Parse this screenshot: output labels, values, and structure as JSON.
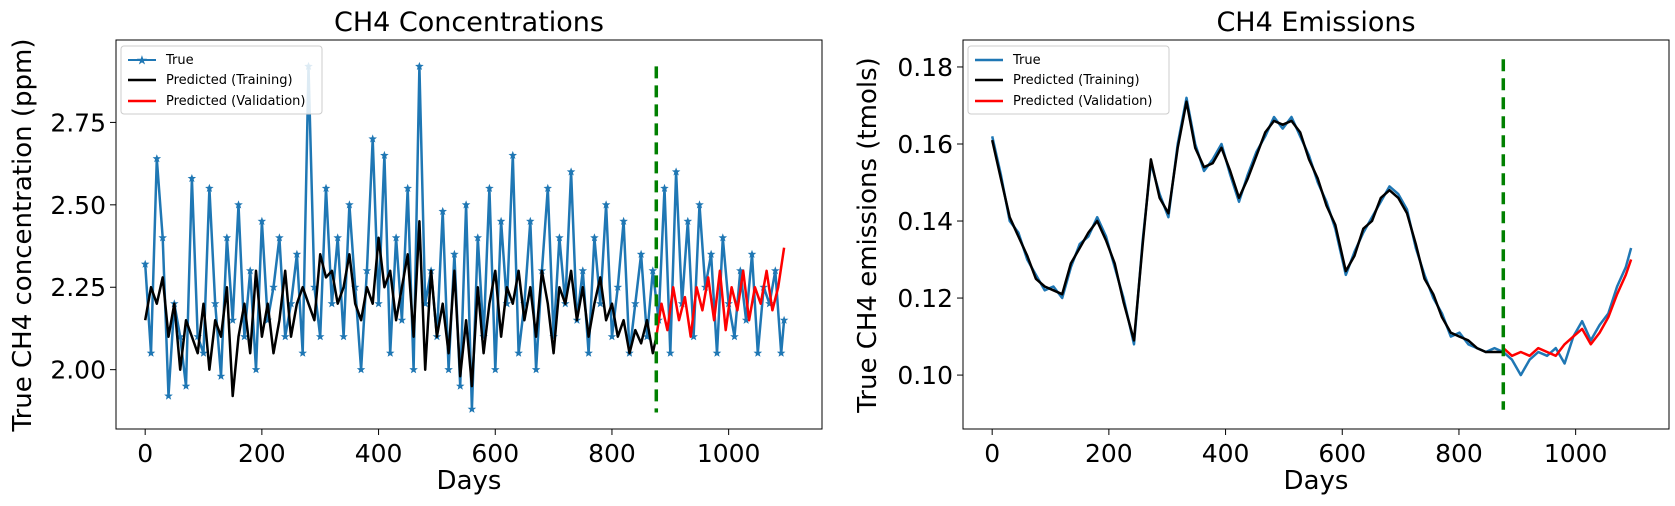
{
  "chart_data": [
    {
      "type": "line",
      "title": "CH4 Concentrations",
      "xlabel": "Days",
      "ylabel": "True CH4 concentration (ppm)",
      "xlim": [
        -50,
        1160
      ],
      "ylim": [
        1.82,
        3.0
      ],
      "xticks": [
        0,
        200,
        400,
        600,
        800,
        1000
      ],
      "yticks": [
        2.0,
        2.25,
        2.5,
        2.75
      ],
      "xtick_labels": [
        "0",
        "200",
        "400",
        "600",
        "800",
        "1000"
      ],
      "ytick_labels": [
        "2.00",
        "2.25",
        "2.50",
        "2.75"
      ],
      "split_day": 876,
      "split_range": [
        1.87,
        2.92
      ],
      "legend": [
        "True",
        "Predicted (Training)",
        "Predicted (Validation)"
      ],
      "legend_position": "top-left",
      "series": [
        {
          "name": "True",
          "color": "#1f77b4",
          "marker": "star",
          "x": [
            0,
            10,
            20,
            30,
            40,
            50,
            60,
            70,
            80,
            90,
            100,
            110,
            120,
            130,
            140,
            150,
            160,
            170,
            180,
            190,
            200,
            210,
            220,
            230,
            240,
            250,
            260,
            270,
            280,
            290,
            300,
            310,
            320,
            330,
            340,
            350,
            360,
            370,
            380,
            390,
            400,
            410,
            420,
            430,
            440,
            450,
            460,
            470,
            480,
            490,
            500,
            510,
            520,
            530,
            540,
            550,
            560,
            570,
            580,
            590,
            600,
            610,
            620,
            630,
            640,
            650,
            660,
            670,
            680,
            690,
            700,
            710,
            720,
            730,
            740,
            750,
            760,
            770,
            780,
            790,
            800,
            810,
            820,
            830,
            840,
            850,
            860,
            870,
            880,
            890,
            900,
            910,
            920,
            930,
            940,
            950,
            960,
            970,
            980,
            990,
            1000,
            1010,
            1020,
            1030,
            1040,
            1050,
            1060,
            1070,
            1080,
            1090,
            1095
          ],
          "y": [
            2.32,
            2.05,
            2.64,
            2.4,
            1.92,
            2.2,
            2.1,
            1.95,
            2.58,
            2.1,
            2.05,
            2.55,
            2.2,
            1.98,
            2.4,
            2.15,
            2.5,
            2.1,
            2.3,
            2.0,
            2.45,
            2.15,
            2.25,
            2.4,
            2.1,
            2.2,
            2.35,
            2.05,
            2.92,
            2.25,
            2.1,
            2.55,
            2.2,
            2.4,
            2.1,
            2.5,
            2.25,
            2.0,
            2.3,
            2.7,
            2.2,
            2.65,
            2.05,
            2.4,
            2.15,
            2.55,
            2.0,
            2.92,
            2.2,
            2.3,
            2.1,
            2.48,
            2.0,
            2.35,
            1.95,
            2.5,
            1.88,
            2.4,
            2.1,
            2.55,
            2.0,
            2.45,
            2.2,
            2.65,
            2.05,
            2.2,
            2.45,
            2.0,
            2.3,
            2.55,
            2.1,
            2.4,
            2.2,
            2.6,
            2.15,
            2.3,
            2.05,
            2.4,
            2.2,
            2.5,
            2.1,
            2.25,
            2.45,
            2.05,
            2.2,
            2.35,
            2.1,
            2.3,
            2.15,
            2.55,
            2.05,
            2.6,
            2.2,
            2.45,
            2.1,
            2.5,
            2.25,
            2.35,
            2.05,
            2.4,
            2.2,
            2.1,
            2.3,
            2.15,
            2.35,
            2.05,
            2.25,
            2.2,
            2.3,
            2.05,
            2.15
          ]
        },
        {
          "name": "Predicted (Training)",
          "color": "#000000",
          "x": [
            0,
            10,
            20,
            30,
            40,
            50,
            60,
            70,
            80,
            90,
            100,
            110,
            120,
            130,
            140,
            150,
            160,
            170,
            180,
            190,
            200,
            210,
            220,
            230,
            240,
            250,
            260,
            270,
            280,
            290,
            300,
            310,
            320,
            330,
            340,
            350,
            360,
            370,
            380,
            390,
            400,
            410,
            420,
            430,
            440,
            450,
            460,
            470,
            480,
            490,
            500,
            510,
            520,
            530,
            540,
            550,
            560,
            570,
            580,
            590,
            600,
            610,
            620,
            630,
            640,
            650,
            660,
            670,
            680,
            690,
            700,
            710,
            720,
            730,
            740,
            750,
            760,
            770,
            780,
            790,
            800,
            810,
            820,
            830,
            840,
            850,
            860,
            870,
            876
          ],
          "y": [
            2.15,
            2.25,
            2.2,
            2.28,
            2.1,
            2.2,
            2.0,
            2.15,
            2.1,
            2.05,
            2.2,
            2.0,
            2.15,
            2.1,
            2.25,
            1.92,
            2.1,
            2.2,
            2.05,
            2.3,
            2.1,
            2.2,
            2.05,
            2.15,
            2.3,
            2.1,
            2.2,
            2.25,
            2.2,
            2.15,
            2.35,
            2.28,
            2.3,
            2.2,
            2.25,
            2.35,
            2.2,
            2.15,
            2.25,
            2.2,
            2.4,
            2.25,
            2.3,
            2.15,
            2.25,
            2.35,
            2.1,
            2.45,
            2.0,
            2.3,
            2.1,
            2.2,
            2.05,
            2.3,
            1.98,
            2.15,
            1.95,
            2.25,
            2.05,
            2.2,
            2.3,
            2.1,
            2.25,
            2.2,
            2.3,
            2.15,
            2.25,
            2.1,
            2.3,
            2.2,
            2.05,
            2.25,
            2.2,
            2.3,
            2.15,
            2.25,
            2.1,
            2.2,
            2.28,
            2.15,
            2.2,
            2.1,
            2.15,
            2.05,
            2.12,
            2.08,
            2.15,
            2.05,
            2.1
          ]
        },
        {
          "name": "Predicted (Validation)",
          "color": "#ff0000",
          "x": [
            876,
            885,
            895,
            905,
            915,
            925,
            935,
            945,
            955,
            965,
            975,
            985,
            995,
            1005,
            1015,
            1025,
            1035,
            1045,
            1055,
            1065,
            1075,
            1085,
            1095
          ],
          "y": [
            2.1,
            2.2,
            2.12,
            2.25,
            2.15,
            2.22,
            2.1,
            2.25,
            2.18,
            2.28,
            2.15,
            2.3,
            2.12,
            2.25,
            2.18,
            2.3,
            2.15,
            2.25,
            2.2,
            2.3,
            2.18,
            2.25,
            2.37
          ]
        }
      ]
    },
    {
      "type": "line",
      "title": "CH4 Emissions",
      "xlabel": "Days",
      "ylabel": "True CH4 emissions (tmols)",
      "xlim": [
        -50,
        1160
      ],
      "ylim": [
        0.086,
        0.187
      ],
      "xticks": [
        0,
        200,
        400,
        600,
        800,
        1000
      ],
      "yticks": [
        0.1,
        0.12,
        0.14,
        0.16,
        0.18
      ],
      "xtick_labels": [
        "0",
        "200",
        "400",
        "600",
        "800",
        "1000"
      ],
      "ytick_labels": [
        "0.10",
        "0.12",
        "0.14",
        "0.16",
        "0.18"
      ],
      "split_day": 876,
      "split_range": [
        0.091,
        0.182
      ],
      "legend": [
        "True",
        "Predicted (Training)",
        "Predicted (Validation)"
      ],
      "legend_position": "top-left",
      "series": [
        {
          "name": "True",
          "color": "#1f77b4",
          "x": [
            0,
            15,
            30,
            45,
            60,
            75,
            90,
            105,
            120,
            135,
            150,
            165,
            180,
            195,
            210,
            225,
            243,
            258,
            272,
            287,
            302,
            318,
            333,
            348,
            363,
            378,
            393,
            408,
            423,
            438,
            453,
            468,
            483,
            498,
            513,
            528,
            543,
            558,
            573,
            588,
            606,
            621,
            636,
            651,
            666,
            681,
            696,
            711,
            726,
            741,
            756,
            771,
            786,
            801,
            816,
            831,
            846,
            861,
            876,
            891,
            906,
            921,
            936,
            951,
            966,
            981,
            996,
            1011,
            1026,
            1041,
            1056,
            1071,
            1086,
            1095
          ],
          "y": [
            0.162,
            0.152,
            0.14,
            0.137,
            0.13,
            0.126,
            0.122,
            0.123,
            0.12,
            0.128,
            0.134,
            0.136,
            0.141,
            0.136,
            0.128,
            0.12,
            0.108,
            0.135,
            0.155,
            0.147,
            0.141,
            0.16,
            0.172,
            0.16,
            0.153,
            0.156,
            0.16,
            0.152,
            0.145,
            0.152,
            0.158,
            0.162,
            0.167,
            0.164,
            0.167,
            0.162,
            0.157,
            0.15,
            0.145,
            0.138,
            0.126,
            0.132,
            0.137,
            0.141,
            0.145,
            0.149,
            0.147,
            0.143,
            0.133,
            0.126,
            0.12,
            0.116,
            0.11,
            0.111,
            0.108,
            0.107,
            0.106,
            0.107,
            0.106,
            0.104,
            0.1,
            0.104,
            0.106,
            0.105,
            0.107,
            0.103,
            0.11,
            0.114,
            0.109,
            0.113,
            0.116,
            0.123,
            0.128,
            0.133
          ]
        },
        {
          "name": "Predicted (Training)",
          "color": "#000000",
          "x": [
            0,
            15,
            30,
            45,
            60,
            75,
            90,
            105,
            120,
            135,
            150,
            165,
            180,
            195,
            210,
            225,
            243,
            258,
            272,
            287,
            302,
            318,
            333,
            348,
            363,
            378,
            393,
            408,
            423,
            438,
            453,
            468,
            483,
            498,
            513,
            528,
            543,
            558,
            573,
            588,
            606,
            621,
            636,
            651,
            666,
            681,
            696,
            711,
            726,
            741,
            756,
            771,
            786,
            801,
            816,
            831,
            846,
            861,
            876
          ],
          "y": [
            0.161,
            0.151,
            0.141,
            0.136,
            0.131,
            0.125,
            0.123,
            0.122,
            0.121,
            0.129,
            0.133,
            0.137,
            0.14,
            0.135,
            0.129,
            0.119,
            0.109,
            0.134,
            0.156,
            0.146,
            0.142,
            0.159,
            0.171,
            0.159,
            0.154,
            0.155,
            0.159,
            0.153,
            0.146,
            0.151,
            0.157,
            0.163,
            0.166,
            0.165,
            0.166,
            0.163,
            0.156,
            0.151,
            0.144,
            0.139,
            0.127,
            0.131,
            0.138,
            0.14,
            0.146,
            0.148,
            0.146,
            0.142,
            0.134,
            0.125,
            0.121,
            0.115,
            0.111,
            0.11,
            0.109,
            0.107,
            0.106,
            0.106,
            0.106
          ]
        },
        {
          "name": "Predicted (Validation)",
          "color": "#ff0000",
          "x": [
            876,
            891,
            906,
            921,
            936,
            951,
            966,
            981,
            996,
            1011,
            1026,
            1041,
            1056,
            1071,
            1086,
            1095
          ],
          "y": [
            0.107,
            0.105,
            0.106,
            0.105,
            0.107,
            0.106,
            0.105,
            0.108,
            0.11,
            0.112,
            0.108,
            0.111,
            0.115,
            0.121,
            0.126,
            0.13
          ]
        }
      ]
    }
  ]
}
